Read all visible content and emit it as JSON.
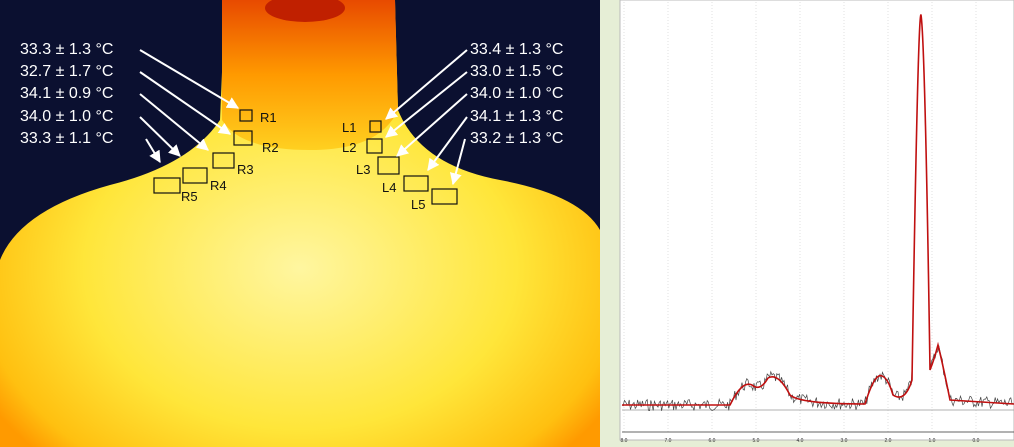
{
  "thermal": {
    "left_labels": [
      "33.3 ± 1.3 °C",
      "32.7 ± 1.7 °C",
      "34.1 ± 0.9 °C",
      "34.0 ± 1.0 °C",
      "33.3 ± 1.1 °C"
    ],
    "right_labels": [
      "33.4 ± 1.3 °C",
      "33.0 ± 1.5 °C",
      "34.0 ± 1.0 °C",
      "34.1 ± 1.3 °C",
      "33.2 ± 1.3 °C"
    ],
    "right_rois": [
      "R1",
      "R2",
      "R3",
      "R4",
      "R5"
    ],
    "left_rois": [
      "L1",
      "L2",
      "L3",
      "L4",
      "L5"
    ]
  },
  "spectrum": {
    "x_tick_labels": [
      "8.0",
      "7.0",
      "6.0",
      "5.0",
      "4.0",
      "3.0",
      "2.0",
      "1.0",
      "0.0"
    ]
  }
}
